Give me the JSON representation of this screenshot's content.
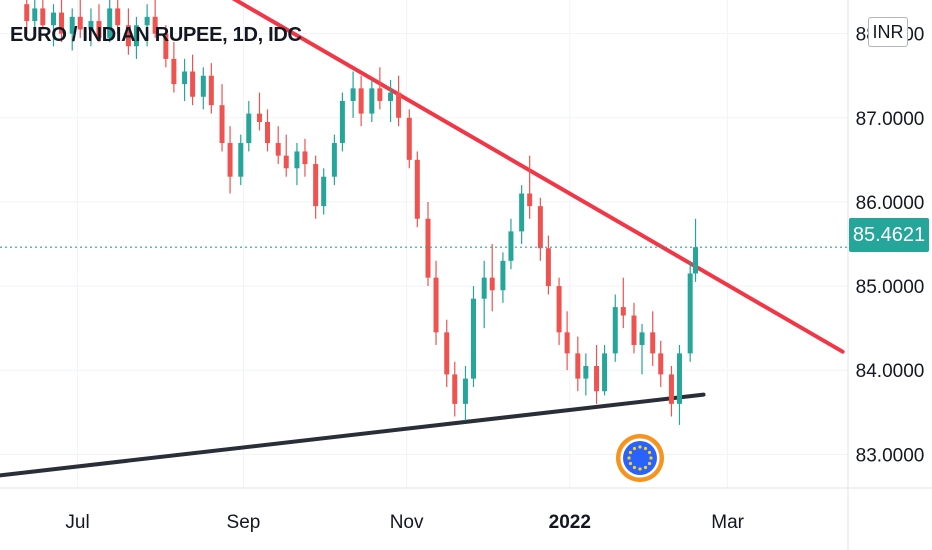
{
  "chart_data": {
    "type": "candlestick",
    "title": "EURO / INDIAN RUPEE, 1D, IDC",
    "currency": "INR",
    "last_price": "85.4621",
    "ylim": [
      82.6,
      88.4
    ],
    "y_ticks": [
      {
        "value": 88.0,
        "label": "88.0000"
      },
      {
        "value": 87.0,
        "label": "87.0000"
      },
      {
        "value": 86.0,
        "label": "86.0000"
      },
      {
        "value": 85.0,
        "label": "85.0000"
      },
      {
        "value": 84.0,
        "label": "84.0000"
      },
      {
        "value": 83.0,
        "label": "83.0000"
      }
    ],
    "x_ticks": [
      {
        "label": "Jul",
        "date": "2021-07-01",
        "bold": false
      },
      {
        "label": "Sep",
        "date": "2021-09-01",
        "bold": false
      },
      {
        "label": "Nov",
        "date": "2021-11-01",
        "bold": false
      },
      {
        "label": "2022",
        "date": "2022-01-01",
        "bold": true
      },
      {
        "label": "Mar",
        "date": "2022-03-01",
        "bold": false
      }
    ],
    "x_range": [
      "2021-06-02",
      "2022-04-15"
    ],
    "trendlines": [
      {
        "name": "resistance",
        "color": "#f23645",
        "from": {
          "date": "2021-08-21",
          "value": 88.55
        },
        "to": {
          "date": "2022-04-13",
          "value": 84.22
        }
      },
      {
        "name": "support",
        "color": "#2a2e39",
        "from": {
          "date": "2021-06-02",
          "value": 82.75
        },
        "to": {
          "date": "2022-02-20",
          "value": 83.71
        }
      }
    ],
    "up_color": "#26a69a",
    "down_color": "#ef5350",
    "candles": [
      [
        "2021-06-12",
        88.35,
        88.55,
        88.0,
        88.15
      ],
      [
        "2021-06-15",
        88.15,
        88.4,
        87.95,
        88.3
      ],
      [
        "2021-06-18",
        88.3,
        88.5,
        88.05,
        88.1
      ],
      [
        "2021-06-22",
        88.1,
        88.35,
        87.85,
        88.25
      ],
      [
        "2021-06-25",
        88.25,
        88.45,
        87.9,
        88.0
      ],
      [
        "2021-06-29",
        88.0,
        88.3,
        87.8,
        88.2
      ],
      [
        "2021-07-02",
        88.2,
        88.4,
        87.95,
        88.05
      ],
      [
        "2021-07-06",
        88.05,
        88.3,
        87.85,
        88.15
      ],
      [
        "2021-07-09",
        88.15,
        88.35,
        87.9,
        87.95
      ],
      [
        "2021-07-13",
        87.95,
        88.4,
        87.9,
        88.3
      ],
      [
        "2021-07-16",
        88.3,
        88.5,
        88.0,
        88.1
      ],
      [
        "2021-07-20",
        88.1,
        88.3,
        87.75,
        87.85
      ],
      [
        "2021-07-23",
        87.85,
        88.2,
        87.7,
        88.1
      ],
      [
        "2021-07-27",
        88.1,
        88.35,
        87.85,
        88.2
      ],
      [
        "2021-07-30",
        88.2,
        88.4,
        87.95,
        88.0
      ],
      [
        "2021-08-03",
        88.0,
        88.1,
        87.6,
        87.7
      ],
      [
        "2021-08-06",
        87.7,
        87.9,
        87.3,
        87.4
      ],
      [
        "2021-08-10",
        87.4,
        87.7,
        87.2,
        87.55
      ],
      [
        "2021-08-13",
        87.55,
        87.75,
        87.15,
        87.25
      ],
      [
        "2021-08-17",
        87.25,
        87.6,
        87.1,
        87.5
      ],
      [
        "2021-08-20",
        87.5,
        87.65,
        87.05,
        87.15
      ],
      [
        "2021-08-24",
        87.15,
        87.4,
        86.6,
        86.7
      ],
      [
        "2021-08-27",
        86.7,
        86.9,
        86.1,
        86.3
      ],
      [
        "2021-08-31",
        86.3,
        86.8,
        86.2,
        86.7
      ],
      [
        "2021-09-03",
        86.7,
        87.2,
        86.6,
        87.05
      ],
      [
        "2021-09-07",
        87.05,
        87.3,
        86.85,
        86.95
      ],
      [
        "2021-09-10",
        86.95,
        87.1,
        86.6,
        86.7
      ],
      [
        "2021-09-14",
        86.7,
        86.9,
        86.45,
        86.55
      ],
      [
        "2021-09-17",
        86.55,
        86.8,
        86.3,
        86.4
      ],
      [
        "2021-09-21",
        86.4,
        86.7,
        86.2,
        86.6
      ],
      [
        "2021-09-24",
        86.6,
        86.75,
        86.3,
        86.45
      ],
      [
        "2021-09-28",
        86.45,
        86.55,
        85.8,
        85.95
      ],
      [
        "2021-10-01",
        85.95,
        86.4,
        85.85,
        86.3
      ],
      [
        "2021-10-05",
        86.3,
        86.8,
        86.2,
        86.7
      ],
      [
        "2021-10-08",
        86.7,
        87.3,
        86.6,
        87.2
      ],
      [
        "2021-10-12",
        87.2,
        87.55,
        87.0,
        87.35
      ],
      [
        "2021-10-15",
        87.35,
        87.5,
        86.9,
        87.05
      ],
      [
        "2021-10-19",
        87.05,
        87.45,
        86.95,
        87.35
      ],
      [
        "2021-10-22",
        87.35,
        87.6,
        87.1,
        87.2
      ],
      [
        "2021-10-26",
        87.2,
        87.45,
        86.95,
        87.3
      ],
      [
        "2021-10-29",
        87.3,
        87.5,
        86.9,
        87.0
      ],
      [
        "2021-11-02",
        87.0,
        87.1,
        86.4,
        86.5
      ],
      [
        "2021-11-05",
        86.5,
        86.6,
        85.7,
        85.8
      ],
      [
        "2021-11-09",
        85.8,
        86.0,
        85.0,
        85.1
      ],
      [
        "2021-11-12",
        85.1,
        85.3,
        84.3,
        84.45
      ],
      [
        "2021-11-16",
        84.45,
        84.6,
        83.8,
        83.95
      ],
      [
        "2021-11-19",
        83.95,
        84.1,
        83.45,
        83.6
      ],
      [
        "2021-11-23",
        83.6,
        84.05,
        83.4,
        83.9
      ],
      [
        "2021-11-26",
        83.9,
        85.0,
        83.8,
        84.85
      ],
      [
        "2021-11-30",
        84.85,
        85.3,
        84.5,
        85.1
      ],
      [
        "2021-12-03",
        85.1,
        85.5,
        84.7,
        84.95
      ],
      [
        "2021-12-07",
        84.95,
        85.4,
        84.8,
        85.3
      ],
      [
        "2021-12-10",
        85.3,
        85.8,
        85.2,
        85.65
      ],
      [
        "2021-12-14",
        85.65,
        86.2,
        85.5,
        86.1
      ],
      [
        "2021-12-17",
        86.1,
        86.55,
        85.8,
        85.95
      ],
      [
        "2021-12-21",
        85.95,
        86.05,
        85.3,
        85.45
      ],
      [
        "2021-12-24",
        85.45,
        85.6,
        84.9,
        85.0
      ],
      [
        "2021-12-28",
        85.0,
        85.1,
        84.3,
        84.45
      ],
      [
        "2021-12-31",
        84.45,
        84.7,
        84.0,
        84.2
      ],
      [
        "2022-01-04",
        84.2,
        84.4,
        83.75,
        83.9
      ],
      [
        "2022-01-07",
        83.9,
        84.2,
        83.7,
        84.05
      ],
      [
        "2022-01-11",
        84.05,
        84.3,
        83.6,
        83.75
      ],
      [
        "2022-01-14",
        83.75,
        84.3,
        83.7,
        84.2
      ],
      [
        "2022-01-18",
        84.2,
        84.9,
        84.1,
        84.75
      ],
      [
        "2022-01-21",
        84.75,
        85.1,
        84.5,
        84.65
      ],
      [
        "2022-01-25",
        84.65,
        84.8,
        84.2,
        84.3
      ],
      [
        "2022-01-28",
        84.3,
        84.55,
        83.95,
        84.45
      ],
      [
        "2022-02-01",
        84.45,
        84.7,
        84.05,
        84.2
      ],
      [
        "2022-02-04",
        84.2,
        84.35,
        83.8,
        83.95
      ],
      [
        "2022-02-08",
        83.95,
        84.05,
        83.45,
        83.6
      ],
      [
        "2022-02-11",
        83.6,
        84.3,
        83.35,
        84.2
      ],
      [
        "2022-02-15",
        84.2,
        85.3,
        84.1,
        85.15
      ],
      [
        "2022-02-17",
        85.15,
        85.8,
        85.05,
        85.4621
      ]
    ]
  }
}
